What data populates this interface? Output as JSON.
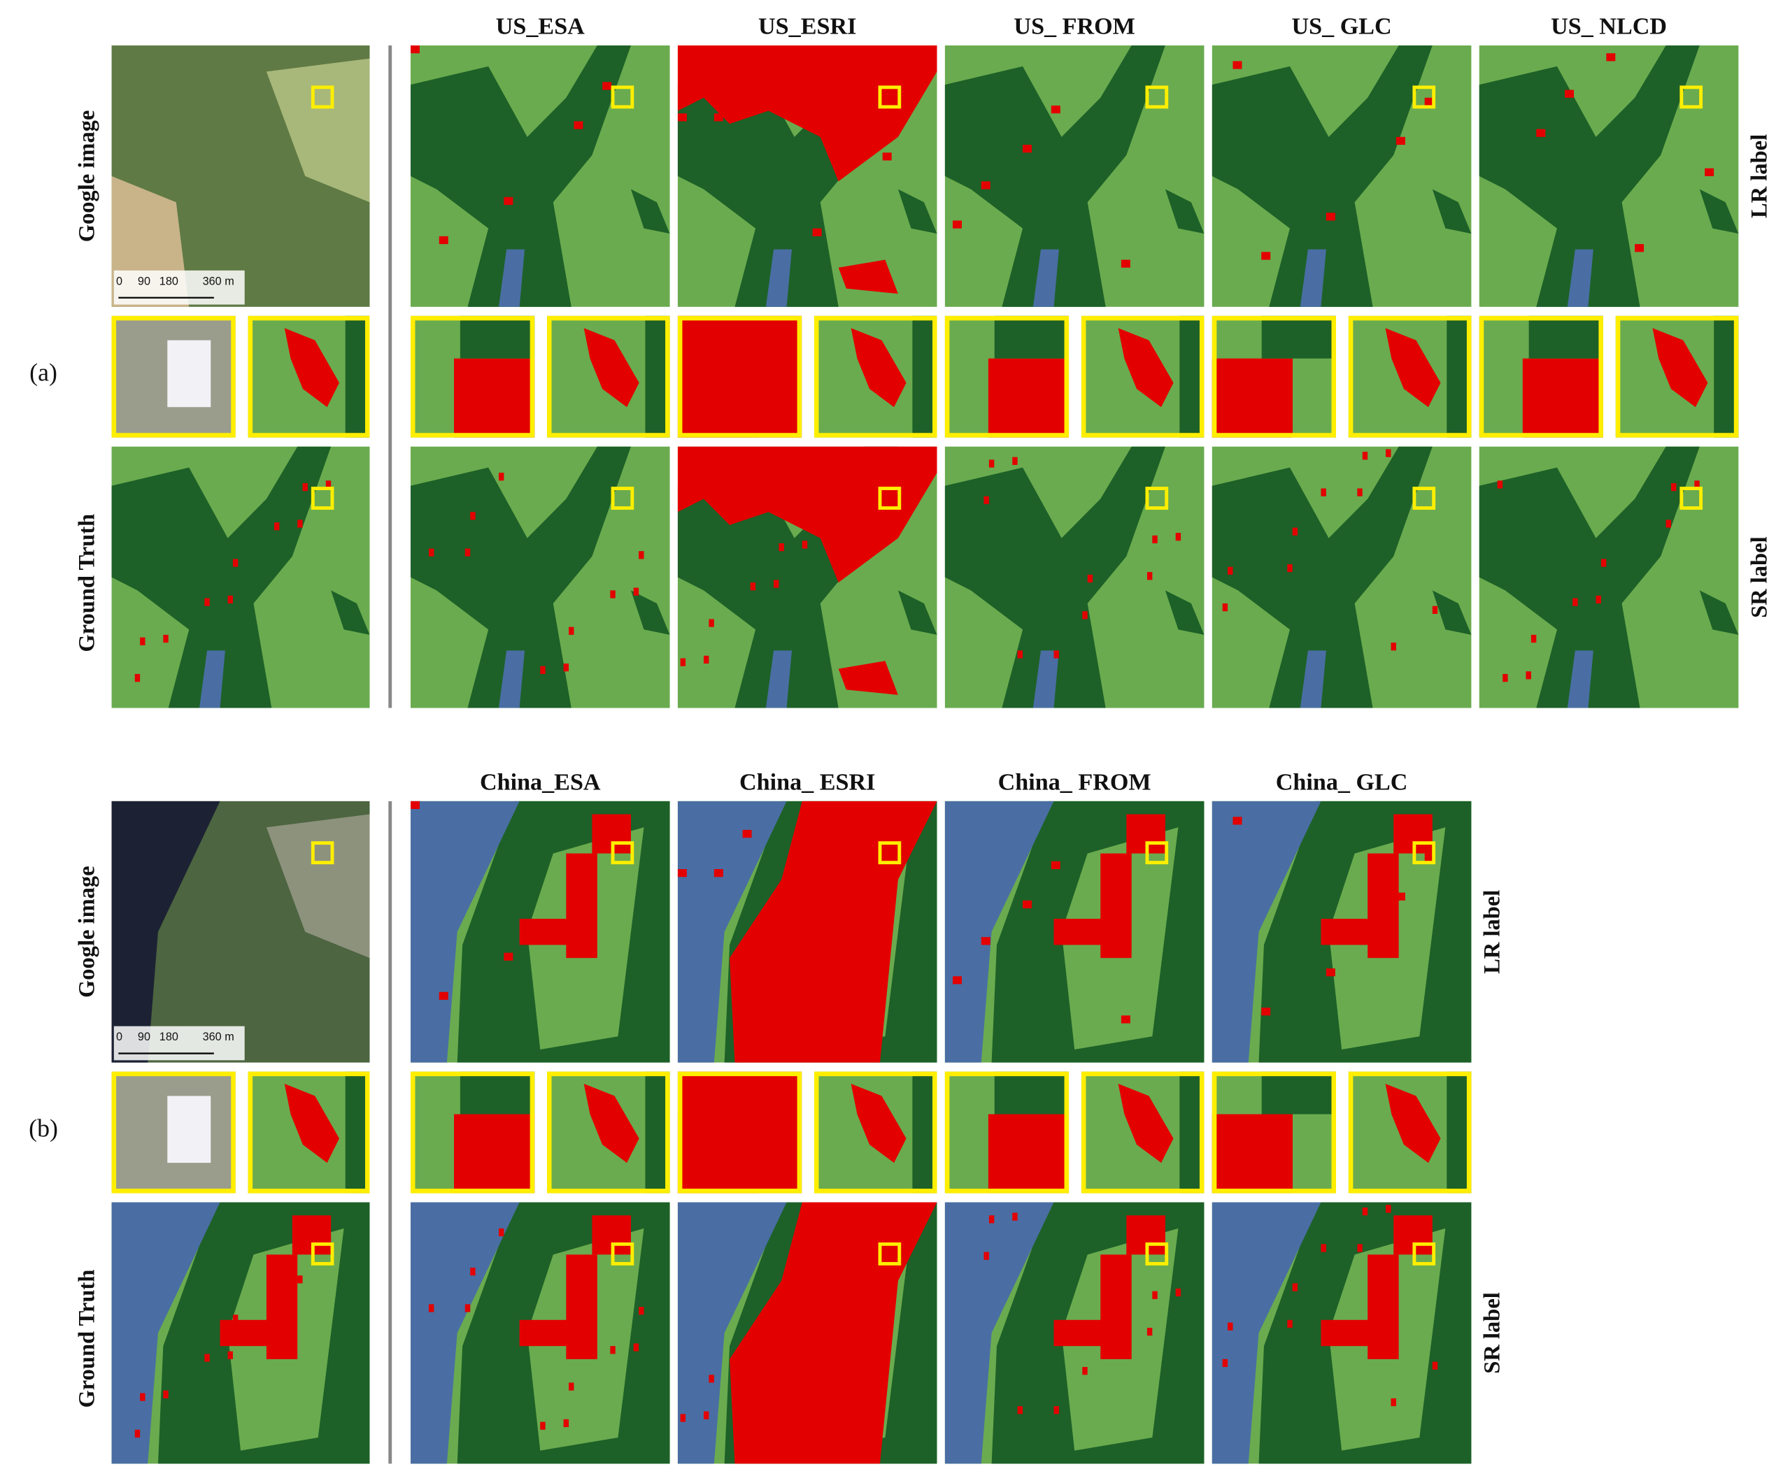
{
  "figure": {
    "panels": [
      {
        "label": "(a)",
        "columns": [
          "US_ESA",
          "US_ESRI",
          "US_ FROM",
          "US_ GLC",
          "US_ NLCD"
        ],
        "row_labels": {
          "google": "Google image",
          "truth": "Ground Truth",
          "lr": "LR label",
          "sr": "SR label"
        },
        "scale_bar": [
          "0",
          "90",
          "180",
          "360 m"
        ]
      },
      {
        "label": "(b)",
        "columns": [
          "China_ESA",
          "China_ ESRI",
          "China_ FROM",
          "China_ GLC"
        ],
        "row_labels": {
          "google": "Google image",
          "truth": "Ground Truth",
          "lr": "LR label",
          "sr": "SR label"
        },
        "scale_bar": [
          "0",
          "90",
          "180",
          "360 m"
        ]
      }
    ]
  }
}
